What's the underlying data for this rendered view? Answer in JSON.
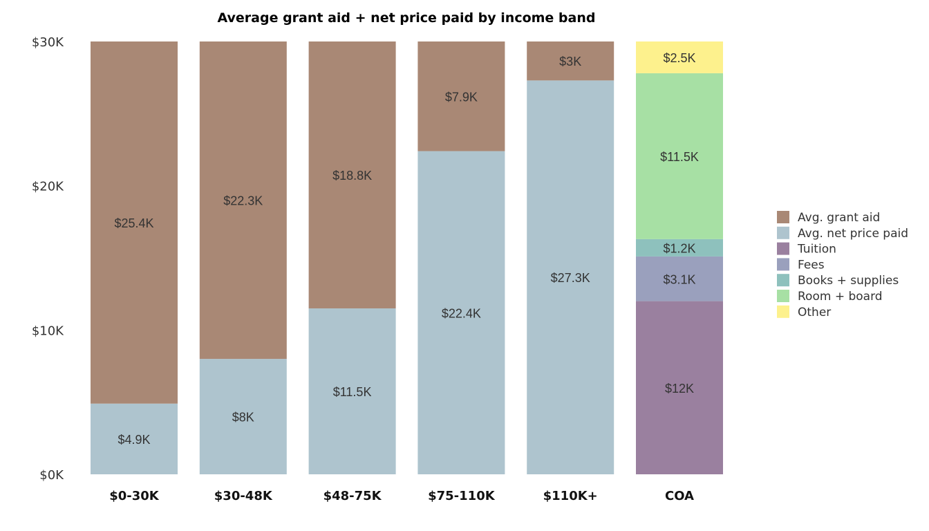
{
  "chart_data": {
    "type": "bar",
    "stacked": true,
    "title": "Average grant aid + net price paid by income band",
    "xlabel": "",
    "ylabel": "",
    "ylim": [
      0,
      30
    ],
    "yticks": [
      {
        "value": 0,
        "label": "$0K"
      },
      {
        "value": 10,
        "label": "$10K"
      },
      {
        "value": 20,
        "label": "$20K"
      },
      {
        "value": 30,
        "label": "$30K"
      }
    ],
    "grid": false,
    "legend_position": "right",
    "categories": [
      "$0-30K",
      "$30-48K",
      "$48-75K",
      "$75-110K",
      "$110K+",
      "COA"
    ],
    "series": [
      {
        "name": "Avg. net price paid",
        "color": "#aec4ce",
        "values": [
          4.9,
          8,
          11.5,
          22.4,
          27.3,
          null
        ],
        "labels": [
          "$4.9K",
          "$8K",
          "$11.5K",
          "$22.4K",
          "$27.3K",
          ""
        ]
      },
      {
        "name": "Avg. grant aid",
        "color": "#a98875",
        "values": [
          25.4,
          22.3,
          18.8,
          7.9,
          3,
          null
        ],
        "labels": [
          "$25.4K",
          "$22.3K",
          "$18.8K",
          "$7.9K",
          "$3K",
          ""
        ]
      },
      {
        "name": "Tuition",
        "color": "#9a809f",
        "values": [
          null,
          null,
          null,
          null,
          null,
          12
        ],
        "labels": [
          "",
          "",
          "",
          "",
          "",
          "$12K"
        ]
      },
      {
        "name": "Fees",
        "color": "#9aa0bd",
        "values": [
          null,
          null,
          null,
          null,
          null,
          3.1
        ],
        "labels": [
          "",
          "",
          "",
          "",
          "",
          "$3.1K"
        ]
      },
      {
        "name": "Books + supplies",
        "color": "#8ec1bd",
        "values": [
          null,
          null,
          null,
          null,
          null,
          1.2
        ],
        "labels": [
          "",
          "",
          "",
          "",
          "",
          "$1.2K"
        ]
      },
      {
        "name": "Room + board",
        "color": "#a7e0a4",
        "values": [
          null,
          null,
          null,
          null,
          null,
          11.5
        ],
        "labels": [
          "",
          "",
          "",
          "",
          "",
          "$11.5K"
        ]
      },
      {
        "name": "Other",
        "color": "#fdf18d",
        "values": [
          null,
          null,
          null,
          null,
          null,
          2.5
        ],
        "labels": [
          "",
          "",
          "",
          "",
          "",
          "$2.5K"
        ]
      }
    ],
    "legend": [
      {
        "name": "Avg. grant aid",
        "color": "#a98875"
      },
      {
        "name": "Avg. net price paid",
        "color": "#aec4ce"
      },
      {
        "name": "Tuition",
        "color": "#9a809f"
      },
      {
        "name": "Fees",
        "color": "#9aa0bd"
      },
      {
        "name": "Books + supplies",
        "color": "#8ec1bd"
      },
      {
        "name": "Room + board",
        "color": "#a7e0a4"
      },
      {
        "name": "Other",
        "color": "#fdf18d"
      }
    ]
  }
}
